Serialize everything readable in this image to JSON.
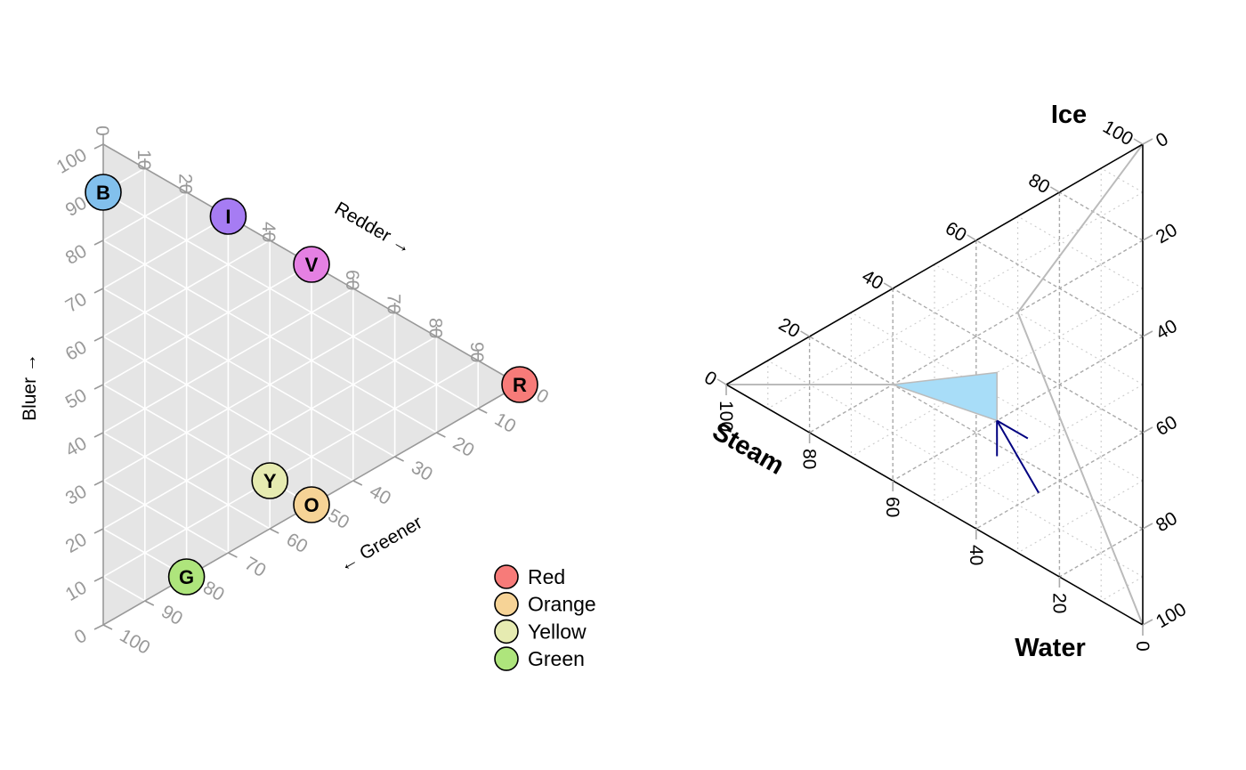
{
  "chart_data": [
    {
      "type": "scatter",
      "subtype": "ternary",
      "title": "",
      "axes": [
        {
          "key": "blue",
          "label": "Bluer →",
          "ticks": [
            0,
            10,
            20,
            30,
            40,
            50,
            60,
            70,
            80,
            90,
            100
          ]
        },
        {
          "key": "red",
          "label": "Redder →",
          "ticks": [
            0,
            10,
            20,
            30,
            40,
            50,
            60,
            70,
            80,
            90,
            100
          ]
        },
        {
          "key": "green",
          "label": "← Greener",
          "ticks": [
            0,
            10,
            20,
            30,
            40,
            50,
            60,
            70,
            80,
            90,
            100
          ]
        }
      ],
      "background": "#e5e5e5",
      "grid": true,
      "grid_color": "#ffffff",
      "axis_color": "#999999",
      "points": [
        {
          "label": "R",
          "red": 100,
          "green": 0,
          "blue": 0,
          "color": "#f77b79"
        },
        {
          "label": "O",
          "red": 50,
          "green": 50,
          "blue": 0,
          "color": "#f6d396"
        },
        {
          "label": "Y",
          "red": 40,
          "green": 50,
          "blue": 10,
          "color": "#e6ebb1"
        },
        {
          "label": "G",
          "red": 20,
          "green": 80,
          "blue": 0,
          "color": "#aee57c"
        },
        {
          "label": "B",
          "red": 0,
          "green": 10,
          "blue": 90,
          "color": "#82c0ec"
        },
        {
          "label": "I",
          "red": 30,
          "green": 0,
          "blue": 70,
          "color": "#a67cf3"
        },
        {
          "label": "V",
          "red": 50,
          "green": 0,
          "blue": 50,
          "color": "#e580e3"
        }
      ],
      "legend": {
        "position": "bottom-right",
        "entries": [
          {
            "label": "Red",
            "color": "#f77b79"
          },
          {
            "label": "Orange",
            "color": "#f6d396"
          },
          {
            "label": "Yellow",
            "color": "#e6ebb1"
          },
          {
            "label": "Green",
            "color": "#aee57c"
          }
        ]
      }
    },
    {
      "type": "line",
      "subtype": "ternary",
      "title": "",
      "corners": {
        "top": "Ice",
        "left": "Steam",
        "bottom": "Water"
      },
      "axes": [
        {
          "key": "ice",
          "label": "Ice",
          "ticks": [
            0,
            20,
            40,
            60,
            80,
            100
          ]
        },
        {
          "key": "water",
          "label": "Water",
          "ticks": [
            0,
            20,
            40,
            60,
            80,
            100
          ]
        },
        {
          "key": "steam",
          "label": "Steam",
          "ticks": [
            0,
            20,
            40,
            60,
            80,
            100
          ]
        }
      ],
      "grid": true,
      "grid_major_color": "#aaaaaa",
      "grid_minor_color": "#cccccc",
      "axis_color": "#000000",
      "lines": [
        {
          "color": "#bbbbbb",
          "points": [
            {
              "ice": 100,
              "water": 0,
              "steam": 0
            },
            {
              "ice": 50,
              "water": 20,
              "steam": 30
            },
            {
              "ice": 0,
              "water": 100,
              "steam": 0
            }
          ]
        },
        {
          "color": "#bbbbbb",
          "points": [
            {
              "ice": 0,
              "water": 0,
              "steam": 100
            },
            {
              "ice": 20,
              "water": 20,
              "steam": 60
            }
          ]
        }
      ],
      "polygons": [
        {
          "fill": "#a8ddf8",
          "stroke": "#bbbbbb",
          "points": [
            {
              "ice": 20,
              "water": 20,
              "steam": 60
            },
            {
              "ice": 35,
              "water": 30,
              "steam": 35
            },
            {
              "ice": 25,
              "water": 40,
              "steam": 35
            }
          ]
        }
      ],
      "arrows": [
        {
          "color": "#000080",
          "from": {
            "ice": 25,
            "water": 40,
            "steam": 35
          },
          "to": {
            "ice": 15,
            "water": 60,
            "steam": 25
          }
        }
      ]
    }
  ]
}
